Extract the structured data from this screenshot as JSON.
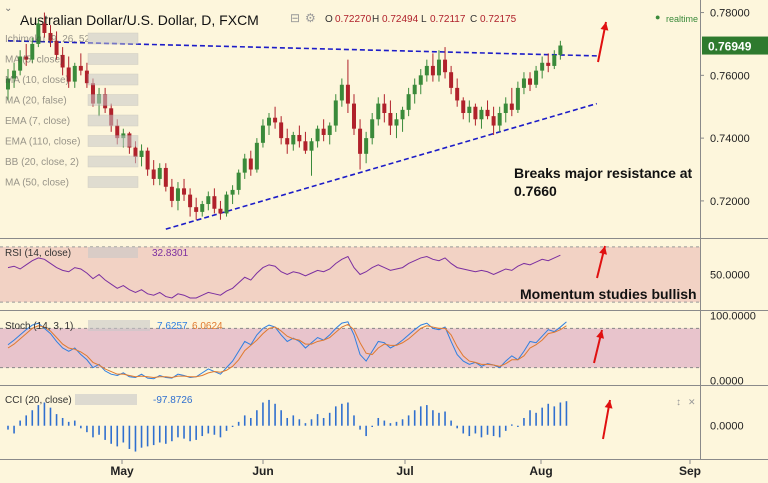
{
  "header": {
    "title": "Australian Dollar/U.S. Dollar, D, FXCM",
    "ohlc": {
      "o_label": "O",
      "o": "0.72270",
      "h_label": "H",
      "h": "0.72494",
      "l_label": "L",
      "l": "0.72117",
      "c_label": "C",
      "c": "0.72175"
    },
    "realtime": "realtime"
  },
  "colors": {
    "background": "#fdf6dc",
    "bull": "#3a8a3a",
    "bear": "#b0212b",
    "trendline": "#1c1cc8",
    "rsi_band": "#f2d2c4",
    "stoch_band": "#e8c4cc",
    "rsi_line": "#7b2fa0",
    "stoch_k": "#2f7fe0",
    "stoch_d": "#e07a2f",
    "cci": "#2f6fcf",
    "arrow": "#e01010",
    "price_tag": "#2e7a2e"
  },
  "indicators": [
    "Ichimoku (9, 26, 52, 26)",
    "MA (5, close)",
    "MA (10, close)",
    "MA (20, false)",
    "EMA (7, close)",
    "EMA (110, close)",
    "BB (20, close, 2)",
    "MA (50, close)"
  ],
  "chart_data": [
    {
      "type": "candlestick",
      "title": "Australian Dollar/U.S. Dollar, D, FXCM",
      "ylim": [
        0.7085,
        0.784
      ],
      "y_ticks": [
        "0.78000",
        "0.76000",
        "0.74000",
        "0.72000"
      ],
      "last_price": "0.76949",
      "x_ticks": [
        "May",
        "Jun",
        "Jul",
        "Aug",
        "Sep"
      ],
      "candles": [
        [
          0.7555,
          0.762,
          0.752,
          0.759
        ],
        [
          0.759,
          0.764,
          0.756,
          0.7615
        ],
        [
          0.7615,
          0.768,
          0.76,
          0.766
        ],
        [
          0.766,
          0.77,
          0.763,
          0.765
        ],
        [
          0.765,
          0.772,
          0.764,
          0.77
        ],
        [
          0.77,
          0.778,
          0.769,
          0.7765
        ],
        [
          0.7765,
          0.78,
          0.772,
          0.7735
        ],
        [
          0.7735,
          0.776,
          0.769,
          0.771
        ],
        [
          0.771,
          0.774,
          0.765,
          0.7665
        ],
        [
          0.7665,
          0.769,
          0.76,
          0.7625
        ],
        [
          0.7625,
          0.766,
          0.756,
          0.758
        ],
        [
          0.758,
          0.764,
          0.756,
          0.763
        ],
        [
          0.763,
          0.767,
          0.76,
          0.7615
        ],
        [
          0.7615,
          0.764,
          0.756,
          0.7575
        ],
        [
          0.7575,
          0.759,
          0.75,
          0.751
        ],
        [
          0.751,
          0.756,
          0.747,
          0.754
        ],
        [
          0.754,
          0.756,
          0.748,
          0.7495
        ],
        [
          0.7495,
          0.751,
          0.742,
          0.744
        ],
        [
          0.744,
          0.746,
          0.738,
          0.74
        ],
        [
          0.74,
          0.743,
          0.737,
          0.7415
        ],
        [
          0.7415,
          0.742,
          0.735,
          0.737
        ],
        [
          0.737,
          0.739,
          0.732,
          0.734
        ],
        [
          0.734,
          0.738,
          0.731,
          0.736
        ],
        [
          0.736,
          0.737,
          0.728,
          0.73
        ],
        [
          0.73,
          0.733,
          0.725,
          0.727
        ],
        [
          0.727,
          0.732,
          0.725,
          0.7305
        ],
        [
          0.7305,
          0.732,
          0.723,
          0.7245
        ],
        [
          0.7245,
          0.727,
          0.718,
          0.72
        ],
        [
          0.72,
          0.726,
          0.717,
          0.724
        ],
        [
          0.724,
          0.727,
          0.72,
          0.722
        ],
        [
          0.722,
          0.724,
          0.715,
          0.718
        ],
        [
          0.718,
          0.721,
          0.714,
          0.7165
        ],
        [
          0.7165,
          0.72,
          0.715,
          0.719
        ],
        [
          0.719,
          0.723,
          0.717,
          0.7215
        ],
        [
          0.7215,
          0.724,
          0.716,
          0.7175
        ],
        [
          0.7175,
          0.72,
          0.714,
          0.716
        ],
        [
          0.716,
          0.723,
          0.715,
          0.722
        ],
        [
          0.722,
          0.725,
          0.719,
          0.7235
        ],
        [
          0.7235,
          0.73,
          0.722,
          0.729
        ],
        [
          0.729,
          0.735,
          0.727,
          0.7335
        ],
        [
          0.7335,
          0.736,
          0.728,
          0.73
        ],
        [
          0.73,
          0.74,
          0.729,
          0.7385
        ],
        [
          0.7385,
          0.746,
          0.737,
          0.744
        ],
        [
          0.744,
          0.748,
          0.741,
          0.7465
        ],
        [
          0.7465,
          0.75,
          0.743,
          0.745
        ],
        [
          0.745,
          0.747,
          0.738,
          0.74
        ],
        [
          0.74,
          0.743,
          0.735,
          0.738
        ],
        [
          0.738,
          0.742,
          0.736,
          0.741
        ],
        [
          0.741,
          0.744,
          0.737,
          0.739
        ],
        [
          0.739,
          0.742,
          0.735,
          0.736
        ],
        [
          0.736,
          0.74,
          0.728,
          0.739
        ],
        [
          0.739,
          0.744,
          0.737,
          0.743
        ],
        [
          0.743,
          0.746,
          0.739,
          0.741
        ],
        [
          0.741,
          0.745,
          0.738,
          0.744
        ],
        [
          0.744,
          0.754,
          0.742,
          0.752
        ],
        [
          0.752,
          0.759,
          0.75,
          0.757
        ],
        [
          0.757,
          0.765,
          0.748,
          0.751
        ],
        [
          0.751,
          0.754,
          0.741,
          0.743
        ],
        [
          0.743,
          0.746,
          0.73,
          0.735
        ],
        [
          0.735,
          0.742,
          0.732,
          0.74
        ],
        [
          0.74,
          0.748,
          0.738,
          0.746
        ],
        [
          0.746,
          0.753,
          0.744,
          0.751
        ],
        [
          0.751,
          0.754,
          0.745,
          0.748
        ],
        [
          0.748,
          0.752,
          0.741,
          0.744
        ],
        [
          0.744,
          0.748,
          0.74,
          0.746
        ],
        [
          0.746,
          0.75,
          0.742,
          0.749
        ],
        [
          0.749,
          0.756,
          0.747,
          0.754
        ],
        [
          0.754,
          0.759,
          0.751,
          0.757
        ],
        [
          0.757,
          0.762,
          0.754,
          0.76
        ],
        [
          0.76,
          0.765,
          0.758,
          0.763
        ],
        [
          0.763,
          0.767,
          0.758,
          0.76
        ],
        [
          0.76,
          0.768,
          0.758,
          0.765
        ],
        [
          0.765,
          0.769,
          0.759,
          0.761
        ],
        [
          0.761,
          0.763,
          0.754,
          0.756
        ],
        [
          0.756,
          0.759,
          0.75,
          0.752
        ],
        [
          0.752,
          0.753,
          0.746,
          0.748
        ],
        [
          0.748,
          0.752,
          0.745,
          0.75
        ],
        [
          0.75,
          0.751,
          0.744,
          0.746
        ],
        [
          0.746,
          0.75,
          0.743,
          0.749
        ],
        [
          0.749,
          0.752,
          0.746,
          0.747
        ],
        [
          0.747,
          0.75,
          0.741,
          0.744
        ],
        [
          0.744,
          0.75,
          0.742,
          0.748
        ],
        [
          0.748,
          0.753,
          0.745,
          0.751
        ],
        [
          0.751,
          0.756,
          0.747,
          0.749
        ],
        [
          0.749,
          0.758,
          0.748,
          0.756
        ],
        [
          0.756,
          0.761,
          0.754,
          0.759
        ],
        [
          0.759,
          0.761,
          0.755,
          0.757
        ],
        [
          0.757,
          0.763,
          0.756,
          0.7615
        ],
        [
          0.7615,
          0.766,
          0.759,
          0.764
        ],
        [
          0.764,
          0.767,
          0.761,
          0.763
        ],
        [
          0.763,
          0.768,
          0.762,
          0.7665
        ],
        [
          0.7665,
          0.771,
          0.765,
          0.7695
        ]
      ],
      "trendlines": [
        {
          "name": "resistance",
          "points": [
            [
              0,
              0.771
            ],
            [
              97,
              0.7662
            ]
          ]
        },
        {
          "name": "support",
          "points": [
            [
              26,
              0.711
            ],
            [
              97,
              0.751
            ]
          ]
        }
      ],
      "annotations": [
        "Breaks major resistance at",
        "0.7660"
      ]
    },
    {
      "type": "line",
      "title": "RSI (14, close)",
      "value_label": "32.8301",
      "ylim": [
        25,
        75
      ],
      "y_ticks": [
        "50.0000"
      ],
      "band": [
        30,
        70
      ],
      "values": [
        55,
        56,
        54,
        57,
        60,
        62,
        61,
        58,
        55,
        53,
        52,
        55,
        54,
        51,
        47,
        50,
        46,
        43,
        40,
        42,
        39,
        37,
        39,
        36,
        35,
        37,
        34,
        33,
        36,
        35,
        33,
        33,
        35,
        37,
        36,
        35,
        38,
        40,
        44,
        48,
        46,
        51,
        55,
        57,
        56,
        52,
        50,
        52,
        51,
        49,
        51,
        53,
        52,
        54,
        58,
        61,
        63,
        55,
        50,
        52,
        55,
        57,
        55,
        53,
        54,
        55,
        58,
        60,
        62,
        63,
        61,
        60,
        62,
        58,
        55,
        54,
        53,
        52,
        53,
        52,
        50,
        52,
        54,
        53,
        56,
        58,
        57,
        59,
        61,
        60,
        62,
        64
      ],
      "annotation": "Momentum studies bullish"
    },
    {
      "type": "line",
      "title": "Stoch (14, 3, 1)",
      "value_labels": [
        "7.6257",
        "6.0624"
      ],
      "ylim": [
        -5,
        105
      ],
      "y_ticks": [
        "100.0000",
        "0.0000"
      ],
      "band": [
        20,
        80
      ],
      "series": [
        {
          "name": "%K",
          "values": [
            55,
            62,
            70,
            78,
            85,
            88,
            80,
            72,
            60,
            50,
            45,
            50,
            40,
            32,
            20,
            25,
            15,
            10,
            8,
            12,
            6,
            5,
            10,
            4,
            3,
            8,
            5,
            4,
            10,
            8,
            5,
            6,
            12,
            18,
            14,
            10,
            20,
            30,
            45,
            60,
            55,
            70,
            80,
            85,
            82,
            70,
            60,
            65,
            60,
            50,
            58,
            66,
            62,
            70,
            80,
            88,
            90,
            70,
            40,
            30,
            45,
            60,
            58,
            50,
            55,
            62,
            70,
            78,
            85,
            88,
            80,
            78,
            82,
            60,
            40,
            30,
            25,
            28,
            22,
            26,
            24,
            20,
            30,
            38,
            32,
            45,
            60,
            58,
            68,
            78,
            75,
            82,
            90
          ]
        },
        {
          "name": "%D",
          "values": [
            50,
            56,
            64,
            72,
            80,
            84,
            82,
            76,
            66,
            56,
            50,
            48,
            44,
            38,
            28,
            24,
            18,
            14,
            10,
            10,
            8,
            6,
            7,
            6,
            5,
            6,
            6,
            5,
            7,
            7,
            6,
            6,
            8,
            12,
            14,
            13,
            16,
            22,
            32,
            46,
            54,
            62,
            72,
            80,
            82,
            76,
            68,
            64,
            62,
            56,
            56,
            60,
            62,
            66,
            74,
            82,
            86,
            78,
            58,
            42,
            40,
            50,
            56,
            54,
            54,
            58,
            64,
            72,
            80,
            84,
            82,
            80,
            80,
            70,
            52,
            38,
            30,
            28,
            25,
            25,
            24,
            22,
            26,
            32,
            32,
            38,
            50,
            55,
            62,
            72,
            74,
            78,
            84
          ]
        }
      ]
    },
    {
      "type": "bar",
      "title": "CCI (20, close)",
      "value_label": "-97.8726",
      "ylim": [
        -250,
        300
      ],
      "y_ticks": [
        "0.0000"
      ],
      "values": [
        -30,
        -60,
        40,
        80,
        120,
        160,
        180,
        140,
        90,
        60,
        30,
        40,
        -20,
        -50,
        -90,
        -70,
        -110,
        -140,
        -160,
        -130,
        -180,
        -200,
        -170,
        -160,
        -150,
        -130,
        -140,
        -120,
        -90,
        -100,
        -120,
        -110,
        -80,
        -60,
        -70,
        -90,
        -40,
        -10,
        30,
        80,
        60,
        120,
        180,
        200,
        170,
        120,
        60,
        80,
        50,
        20,
        50,
        90,
        60,
        100,
        150,
        170,
        180,
        80,
        -30,
        -80,
        -10,
        60,
        40,
        20,
        30,
        50,
        80,
        120,
        150,
        160,
        120,
        100,
        110,
        40,
        -20,
        -60,
        -80,
        -60,
        -90,
        -70,
        -80,
        -90,
        -40,
        10,
        -10,
        60,
        120,
        100,
        140,
        170,
        150,
        180,
        190
      ]
    }
  ]
}
